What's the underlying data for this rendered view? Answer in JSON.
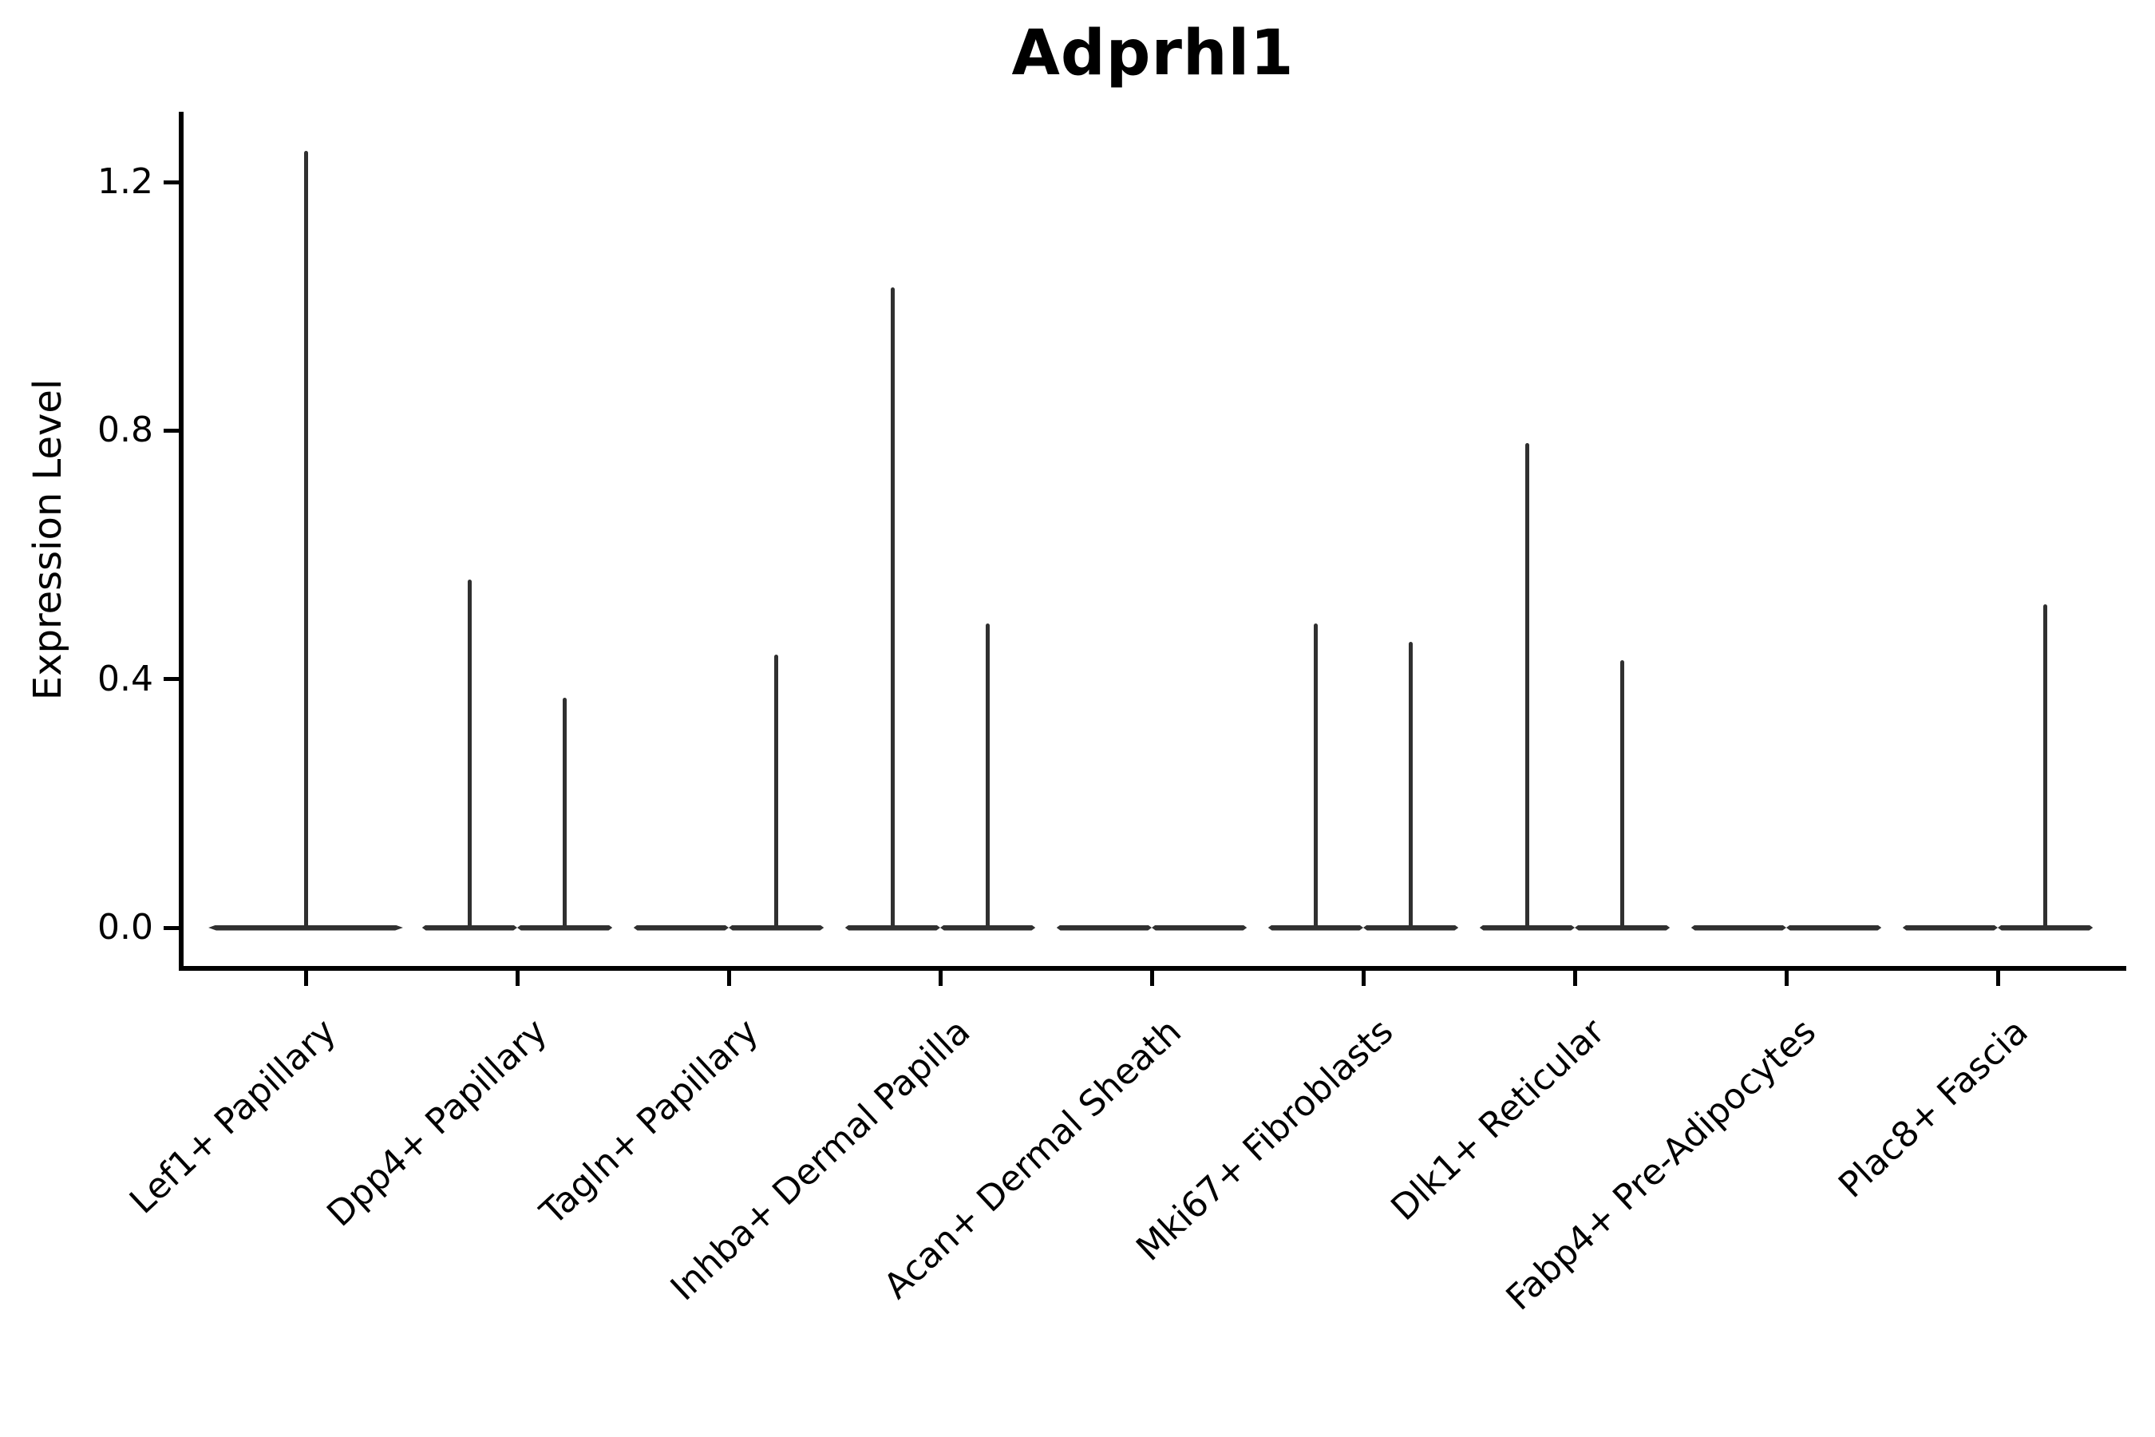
{
  "chart_data": {
    "type": "violin",
    "title": "Adprhl1",
    "ylabel": "Expression Level",
    "xlabel": "",
    "ylim": [
      -0.06,
      1.31
    ],
    "grid": false,
    "legend": "none",
    "line_color": "#303030",
    "background_color": "#ffffff",
    "yticks": [
      {
        "value": 0.0,
        "label": "0.0"
      },
      {
        "value": 0.4,
        "label": "0.4"
      },
      {
        "value": 0.8,
        "label": "0.8"
      },
      {
        "value": 1.2,
        "label": "1.2"
      }
    ],
    "categories": [
      {
        "label": "Lef1+ Papillary",
        "violins": [
          {
            "offset": 0,
            "width": 0.92,
            "peak": 1.25
          }
        ]
      },
      {
        "label": "Dpp4+ Papillary",
        "violins": [
          {
            "offset": -0.225,
            "width": 0.45,
            "peak": 0.56
          },
          {
            "offset": 0.225,
            "width": 0.45,
            "peak": 0.37
          }
        ]
      },
      {
        "label": "Tagln+ Papillary",
        "violins": [
          {
            "offset": -0.225,
            "width": 0.45,
            "peak": 0
          },
          {
            "offset": 0.225,
            "width": 0.45,
            "peak": 0.44
          }
        ]
      },
      {
        "label": "Inhba+ Dermal Papilla",
        "violins": [
          {
            "offset": -0.225,
            "width": 0.45,
            "peak": 1.03
          },
          {
            "offset": 0.225,
            "width": 0.45,
            "peak": 0.49
          }
        ]
      },
      {
        "label": "Acan+ Dermal Sheath",
        "violins": [
          {
            "offset": -0.225,
            "width": 0.45,
            "peak": 0
          },
          {
            "offset": 0.225,
            "width": 0.45,
            "peak": 0
          }
        ]
      },
      {
        "label": "Mki67+ Fibroblasts",
        "violins": [
          {
            "offset": -0.225,
            "width": 0.45,
            "peak": 0.49
          },
          {
            "offset": 0.225,
            "width": 0.45,
            "peak": 0.46
          }
        ]
      },
      {
        "label": "Dlk1+ Reticular",
        "violins": [
          {
            "offset": -0.225,
            "width": 0.45,
            "peak": 0.78
          },
          {
            "offset": 0.225,
            "width": 0.45,
            "peak": 0.43
          }
        ]
      },
      {
        "label": "Fabp4+ Pre-Adipocytes",
        "violins": [
          {
            "offset": -0.225,
            "width": 0.45,
            "peak": 0
          },
          {
            "offset": 0.225,
            "width": 0.45,
            "peak": 0
          }
        ]
      },
      {
        "label": "Plac8+ Fascia",
        "violins": [
          {
            "offset": -0.225,
            "width": 0.45,
            "peak": 0
          },
          {
            "offset": 0.225,
            "width": 0.45,
            "peak": 0.52
          }
        ]
      }
    ]
  }
}
